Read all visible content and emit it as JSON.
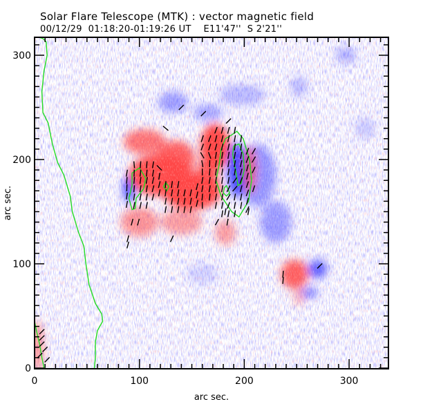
{
  "chart_data": {
    "type": "heatmap",
    "title": "Solar Flare Telescope (MTK) : vector magnetic field",
    "subtitle": {
      "date": "00/12/29",
      "time_range": "01:18:20-01:19:26 UT",
      "longitude": "E11'47''",
      "latitude": "S 2'21''"
    },
    "xlabel": "arc sec.",
    "ylabel": "arc sec.",
    "xlim": [
      0,
      337
    ],
    "ylim": [
      0,
      317
    ],
    "x_ticks": [
      {
        "value": 0,
        "label": "0"
      },
      {
        "value": 100,
        "label": "100"
      },
      {
        "value": 200,
        "label": "200"
      },
      {
        "value": 300,
        "label": "300"
      }
    ],
    "y_ticks": [
      {
        "value": 0,
        "label": "0"
      },
      {
        "value": 100,
        "label": "100"
      },
      {
        "value": 200,
        "label": "200"
      },
      {
        "value": 300,
        "label": "300"
      }
    ],
    "minor_tick_step": 10,
    "colors": {
      "positive_polarity": "#ff4545",
      "negative_polarity": "#4848ff",
      "contour": "#22dd22",
      "vector": "#000000"
    },
    "positive_regions": [
      {
        "x": 105,
        "y": 217,
        "rx": 20,
        "ry": 12,
        "strength": 0.75
      },
      {
        "x": 120,
        "y": 185,
        "rx": 30,
        "ry": 20,
        "strength": 0.95
      },
      {
        "x": 150,
        "y": 170,
        "rx": 28,
        "ry": 18,
        "strength": 1.0
      },
      {
        "x": 135,
        "y": 200,
        "rx": 18,
        "ry": 18,
        "strength": 0.85
      },
      {
        "x": 172,
        "y": 212,
        "rx": 14,
        "ry": 22,
        "strength": 1.0
      },
      {
        "x": 165,
        "y": 185,
        "rx": 10,
        "ry": 18,
        "strength": 0.9
      },
      {
        "x": 205,
        "y": 190,
        "rx": 6,
        "ry": 22,
        "strength": 0.7
      },
      {
        "x": 100,
        "y": 140,
        "rx": 18,
        "ry": 14,
        "strength": 0.55
      },
      {
        "x": 140,
        "y": 140,
        "rx": 20,
        "ry": 12,
        "strength": 0.5
      },
      {
        "x": 182,
        "y": 130,
        "rx": 10,
        "ry": 12,
        "strength": 0.5
      },
      {
        "x": 248,
        "y": 90,
        "rx": 13,
        "ry": 14,
        "strength": 0.85
      },
      {
        "x": 252,
        "y": 68,
        "rx": 5,
        "ry": 8,
        "strength": 0.4
      },
      {
        "x": 3,
        "y": 20,
        "rx": 5,
        "ry": 25,
        "strength": 0.6
      }
    ],
    "negative_regions": [
      {
        "x": 90,
        "y": 172,
        "rx": 6,
        "ry": 13,
        "strength": 0.9
      },
      {
        "x": 193,
        "y": 190,
        "rx": 9,
        "ry": 26,
        "strength": 1.0
      },
      {
        "x": 212,
        "y": 185,
        "rx": 18,
        "ry": 30,
        "strength": 0.55
      },
      {
        "x": 230,
        "y": 140,
        "rx": 15,
        "ry": 20,
        "strength": 0.5
      },
      {
        "x": 132,
        "y": 255,
        "rx": 14,
        "ry": 10,
        "strength": 0.5
      },
      {
        "x": 165,
        "y": 245,
        "rx": 14,
        "ry": 8,
        "strength": 0.45
      },
      {
        "x": 198,
        "y": 262,
        "rx": 22,
        "ry": 10,
        "strength": 0.35
      },
      {
        "x": 270,
        "y": 95,
        "rx": 9,
        "ry": 9,
        "strength": 0.85
      },
      {
        "x": 262,
        "y": 72,
        "rx": 8,
        "ry": 5,
        "strength": 0.7
      },
      {
        "x": 252,
        "y": 270,
        "rx": 8,
        "ry": 10,
        "strength": 0.35
      },
      {
        "x": 297,
        "y": 300,
        "rx": 10,
        "ry": 8,
        "strength": 0.4
      },
      {
        "x": 315,
        "y": 230,
        "rx": 10,
        "ry": 10,
        "strength": 0.25
      },
      {
        "x": 160,
        "y": 90,
        "rx": 15,
        "ry": 10,
        "strength": 0.2
      }
    ],
    "contours": [
      [
        [
          5,
          317
        ],
        [
          8,
          316
        ],
        [
          11,
          313
        ],
        [
          12,
          300
        ],
        [
          9,
          285
        ],
        [
          7,
          265
        ],
        [
          8,
          245
        ],
        [
          13,
          235
        ],
        [
          17,
          215
        ],
        [
          22,
          197
        ],
        [
          28,
          185
        ],
        [
          34,
          165
        ],
        [
          36,
          150
        ],
        [
          42,
          130
        ],
        [
          47,
          117
        ],
        [
          49,
          100
        ],
        [
          52,
          80
        ],
        [
          58,
          62
        ],
        [
          64,
          52
        ],
        [
          65,
          45
        ],
        [
          60,
          36
        ],
        [
          58,
          25
        ],
        [
          58,
          10
        ],
        [
          57,
          0
        ]
      ],
      [
        [
          0,
          45
        ],
        [
          2,
          35
        ],
        [
          5,
          22
        ],
        [
          7,
          10
        ],
        [
          9,
          0
        ]
      ],
      [
        [
          93,
          187
        ],
        [
          100,
          192
        ],
        [
          106,
          182
        ],
        [
          104,
          172
        ],
        [
          97,
          163
        ],
        [
          96,
          153
        ],
        [
          93,
          152
        ],
        [
          90,
          163
        ],
        [
          93,
          175
        ],
        [
          93,
          187
        ]
      ],
      [
        [
          123,
          174
        ],
        [
          125,
          178
        ],
        [
          128,
          174
        ],
        [
          126,
          170
        ],
        [
          123,
          174
        ]
      ],
      [
        [
          187,
          223
        ],
        [
          193,
          227
        ],
        [
          199,
          220
        ],
        [
          205,
          200
        ],
        [
          207,
          180
        ],
        [
          204,
          160
        ],
        [
          195,
          145
        ],
        [
          188,
          150
        ],
        [
          178,
          165
        ],
        [
          173,
          180
        ],
        [
          176,
          195
        ],
        [
          178,
          210
        ],
        [
          182,
          220
        ],
        [
          187,
          223
        ]
      ],
      [
        [
          190,
          213
        ],
        [
          195,
          215
        ],
        [
          199,
          205
        ],
        [
          200,
          190
        ],
        [
          197,
          177
        ],
        [
          194,
          175
        ],
        [
          192,
          188
        ],
        [
          189,
          205
        ],
        [
          190,
          213
        ]
      ],
      [
        [
          181,
          173
        ],
        [
          183,
          175
        ],
        [
          186,
          168
        ],
        [
          183,
          165
        ],
        [
          180,
          168
        ],
        [
          181,
          173
        ]
      ]
    ],
    "vectors": [
      [
        88,
        187,
        100
      ],
      [
        88,
        180,
        95
      ],
      [
        88,
        173,
        92
      ],
      [
        88,
        165,
        97
      ],
      [
        88,
        157,
        100
      ],
      [
        95,
        195,
        85
      ],
      [
        95,
        187,
        92
      ],
      [
        95,
        180,
        95
      ],
      [
        95,
        172,
        96
      ],
      [
        95,
        164,
        98
      ],
      [
        95,
        156,
        100
      ],
      [
        101,
        195,
        95
      ],
      [
        101,
        187,
        97
      ],
      [
        101,
        180,
        98
      ],
      [
        101,
        172,
        99
      ],
      [
        101,
        164,
        100
      ],
      [
        101,
        156,
        102
      ],
      [
        107,
        195,
        95
      ],
      [
        107,
        187,
        96
      ],
      [
        107,
        180,
        100
      ],
      [
        107,
        172,
        100
      ],
      [
        107,
        164,
        100
      ],
      [
        107,
        156,
        101
      ],
      [
        113,
        195,
        100
      ],
      [
        113,
        187,
        100
      ],
      [
        113,
        180,
        102
      ],
      [
        113,
        172,
        104
      ],
      [
        113,
        164,
        104
      ],
      [
        119,
        192,
        45
      ],
      [
        119,
        184,
        100
      ],
      [
        119,
        176,
        104
      ],
      [
        119,
        168,
        102
      ],
      [
        125,
        176,
        96
      ],
      [
        125,
        168,
        98
      ],
      [
        125,
        160,
        100
      ],
      [
        125,
        152,
        100
      ],
      [
        131,
        176,
        98
      ],
      [
        131,
        168,
        100
      ],
      [
        131,
        160,
        100
      ],
      [
        131,
        152,
        100
      ],
      [
        137,
        176,
        100
      ],
      [
        137,
        168,
        100
      ],
      [
        137,
        160,
        100
      ],
      [
        137,
        152,
        100
      ],
      [
        143,
        168,
        102
      ],
      [
        143,
        160,
        100
      ],
      [
        143,
        152,
        100
      ],
      [
        149,
        168,
        102
      ],
      [
        149,
        160,
        100
      ],
      [
        149,
        152,
        100
      ],
      [
        155,
        174,
        104
      ],
      [
        155,
        166,
        102
      ],
      [
        155,
        158,
        104
      ],
      [
        160,
        220,
        108
      ],
      [
        160,
        212,
        110
      ],
      [
        160,
        204,
        60
      ],
      [
        160,
        196,
        80
      ],
      [
        160,
        188,
        90
      ],
      [
        160,
        180,
        100
      ],
      [
        160,
        172,
        100
      ],
      [
        160,
        164,
        96
      ],
      [
        160,
        156,
        90
      ],
      [
        167,
        220,
        110
      ],
      [
        167,
        212,
        108
      ],
      [
        167,
        204,
        70
      ],
      [
        167,
        196,
        92
      ],
      [
        167,
        188,
        95
      ],
      [
        167,
        180,
        100
      ],
      [
        167,
        172,
        100
      ],
      [
        167,
        164,
        96
      ],
      [
        173,
        228,
        110
      ],
      [
        173,
        220,
        105
      ],
      [
        173,
        212,
        105
      ],
      [
        173,
        204,
        98
      ],
      [
        173,
        196,
        98
      ],
      [
        173,
        188,
        98
      ],
      [
        173,
        180,
        98
      ],
      [
        173,
        172,
        98
      ],
      [
        173,
        164,
        100
      ],
      [
        173,
        156,
        100
      ],
      [
        179,
        228,
        106
      ],
      [
        179,
        220,
        104
      ],
      [
        179,
        212,
        102
      ],
      [
        179,
        204,
        100
      ],
      [
        179,
        196,
        98
      ],
      [
        179,
        188,
        98
      ],
      [
        179,
        180,
        98
      ],
      [
        179,
        172,
        100
      ],
      [
        179,
        164,
        100
      ],
      [
        179,
        156,
        100
      ],
      [
        179,
        148,
        100
      ],
      [
        185,
        228,
        104
      ],
      [
        185,
        220,
        102
      ],
      [
        185,
        212,
        102
      ],
      [
        185,
        204,
        100
      ],
      [
        185,
        196,
        100
      ],
      [
        185,
        188,
        100
      ],
      [
        185,
        180,
        100
      ],
      [
        185,
        172,
        115
      ],
      [
        185,
        164,
        120
      ],
      [
        185,
        156,
        110
      ],
      [
        185,
        148,
        100
      ],
      [
        191,
        228,
        100
      ],
      [
        191,
        220,
        100
      ],
      [
        191,
        212,
        98
      ],
      [
        191,
        204,
        100
      ],
      [
        191,
        196,
        100
      ],
      [
        191,
        188,
        100
      ],
      [
        191,
        180,
        125
      ],
      [
        191,
        172,
        130
      ],
      [
        191,
        164,
        100
      ],
      [
        191,
        156,
        100
      ],
      [
        191,
        148,
        100
      ],
      [
        197,
        220,
        98
      ],
      [
        197,
        212,
        98
      ],
      [
        197,
        204,
        100
      ],
      [
        197,
        196,
        102
      ],
      [
        197,
        188,
        104
      ],
      [
        197,
        180,
        110
      ],
      [
        197,
        172,
        105
      ],
      [
        197,
        164,
        100
      ],
      [
        197,
        156,
        100
      ],
      [
        203,
        208,
        110
      ],
      [
        203,
        200,
        110
      ],
      [
        203,
        192,
        105
      ],
      [
        203,
        184,
        105
      ],
      [
        203,
        176,
        108
      ],
      [
        203,
        168,
        110
      ],
      [
        203,
        160,
        105
      ],
      [
        203,
        152,
        115
      ],
      [
        209,
        208,
        120
      ],
      [
        209,
        200,
        120
      ],
      [
        209,
        190,
        115
      ],
      [
        209,
        172,
        108
      ],
      [
        125,
        230,
        40
      ],
      [
        140,
        250,
        135
      ],
      [
        161,
        244,
        135
      ],
      [
        185,
        237,
        135
      ],
      [
        93,
        140,
        105
      ],
      [
        99,
        140,
        105
      ],
      [
        89,
        124,
        105
      ],
      [
        89,
        118,
        105
      ],
      [
        131,
        124,
        115
      ],
      [
        174,
        140,
        118
      ],
      [
        184,
        140,
        100
      ],
      [
        182,
        150,
        100
      ],
      [
        204,
        150,
        100
      ],
      [
        237,
        90,
        95
      ],
      [
        237,
        84,
        95
      ],
      [
        272,
        98,
        135
      ],
      [
        7,
        35,
        135
      ],
      [
        7,
        29,
        135
      ],
      [
        7,
        23,
        135
      ],
      [
        10,
        18,
        135
      ],
      [
        5,
        12,
        135
      ],
      [
        12,
        8,
        135
      ]
    ]
  }
}
